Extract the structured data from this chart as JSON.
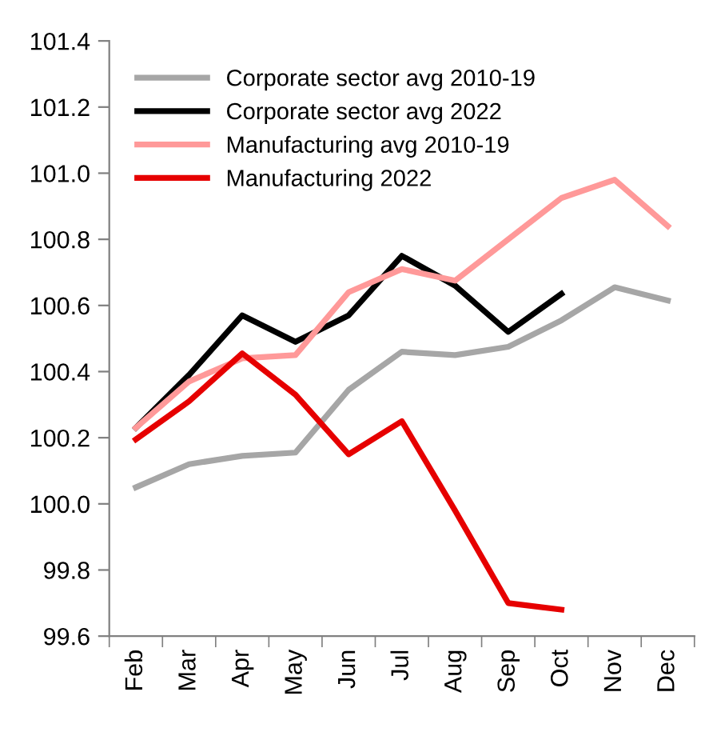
{
  "chart_data": {
    "type": "line",
    "categories": [
      "Feb",
      "Mar",
      "Apr",
      "May",
      "Jun",
      "Jul",
      "Aug",
      "Sep",
      "Oct",
      "Nov",
      "Dec"
    ],
    "series": [
      {
        "name": "Corporate sector avg 2010-19",
        "color": "#a6a6a6",
        "values": [
          100.05,
          100.12,
          100.145,
          100.155,
          100.345,
          100.46,
          100.45,
          100.475,
          100.555,
          100.655,
          100.615
        ]
      },
      {
        "name": "Corporate sector avg 2022",
        "color": "#000000",
        "values": [
          100.23,
          100.39,
          100.57,
          100.49,
          100.57,
          100.75,
          100.66,
          100.52,
          100.635,
          null,
          null
        ]
      },
      {
        "name": "Manufacturing avg 2010-19",
        "color": "#ff9999",
        "values": [
          100.23,
          100.37,
          100.44,
          100.45,
          100.64,
          100.71,
          100.675,
          100.8,
          100.925,
          100.98,
          100.84
        ]
      },
      {
        "name": "Manufacturing 2022",
        "color": "#e60000",
        "values": [
          100.195,
          100.31,
          100.455,
          100.33,
          100.15,
          100.25,
          99.98,
          99.7,
          99.68,
          null,
          null
        ]
      }
    ],
    "ylim": [
      99.6,
      101.4
    ],
    "yticks": [
      99.6,
      99.8,
      {
        "value": 100,
        "label": "100.0"
      },
      100.2,
      100.4,
      100.6,
      100.8,
      {
        "value": 101,
        "label": "101.0"
      },
      101.2,
      101.4
    ],
    "grid": false,
    "legend": "top left",
    "marker": "none",
    "line_style": "solid"
  }
}
